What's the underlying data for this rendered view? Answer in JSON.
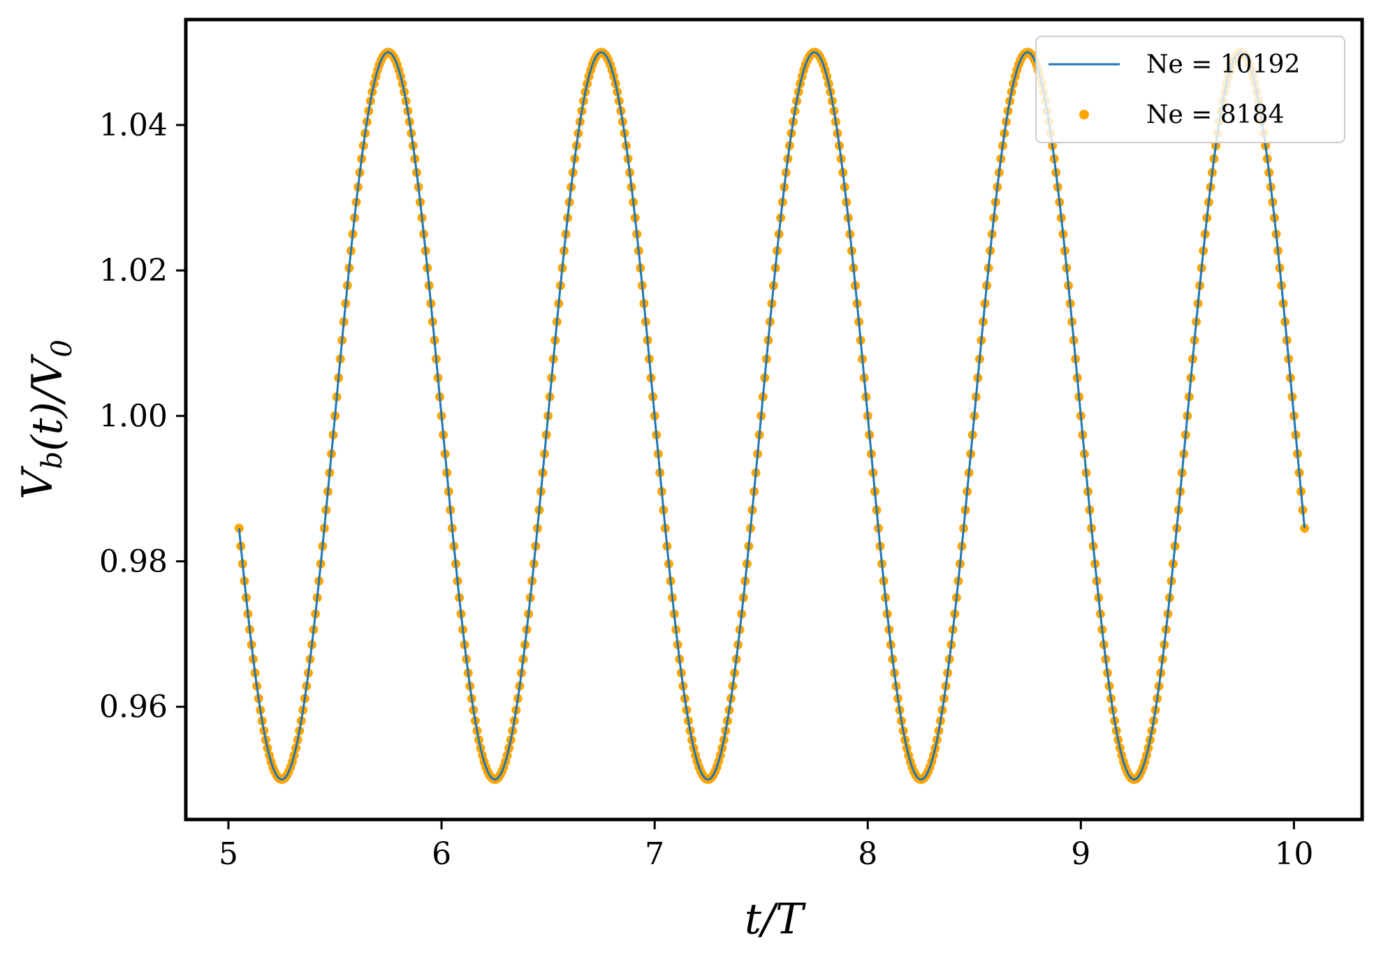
{
  "chart_data": {
    "type": "line",
    "title": "",
    "xlabel": "t/T",
    "ylabel": "V_b(t)/V_0",
    "xlim": [
      4.8,
      10.32
    ],
    "ylim": [
      0.9445,
      1.0545
    ],
    "xticks": [
      5,
      6,
      7,
      8,
      9,
      10
    ],
    "xtick_labels": [
      "5",
      "6",
      "7",
      "8",
      "9",
      "10"
    ],
    "yticks": [
      0.96,
      0.98,
      1.0,
      1.02,
      1.04
    ],
    "ytick_labels": [
      "0.96",
      "0.98",
      "1.00",
      "1.02",
      "1.04"
    ],
    "grid": false,
    "legend_position": "top-right",
    "series": [
      {
        "name": "Ne =  10192",
        "style": "line",
        "color": "#1f77b4",
        "model": {
          "mean": 1.0,
          "amplitude": 0.05,
          "period": 1.0,
          "phase_ref_t": 5.75,
          "x_start": 5.05,
          "x_end": 10.05
        }
      },
      {
        "name": "Ne =  8184",
        "style": "markers",
        "color": "#ffa500",
        "model": {
          "mean": 1.0,
          "amplitude": 0.05,
          "period": 1.0,
          "phase_ref_t": 5.75,
          "x_start": 5.05,
          "x_end": 10.05
        }
      }
    ],
    "approx_points": {
      "x": [
        5.05,
        5.25,
        5.5,
        5.75,
        6.0,
        6.25,
        6.5,
        6.75,
        7.0,
        7.25,
        7.5,
        7.75,
        8.0,
        8.25,
        8.5,
        8.75,
        9.0,
        9.25,
        9.5,
        9.75,
        10.0,
        10.05
      ],
      "y": [
        0.982,
        0.95,
        1.0,
        1.05,
        1.0,
        0.95,
        1.0,
        1.05,
        1.0,
        0.95,
        1.0,
        1.05,
        1.0,
        0.95,
        1.0,
        1.05,
        1.0,
        0.95,
        1.0,
        1.05,
        1.0,
        0.982
      ]
    }
  }
}
